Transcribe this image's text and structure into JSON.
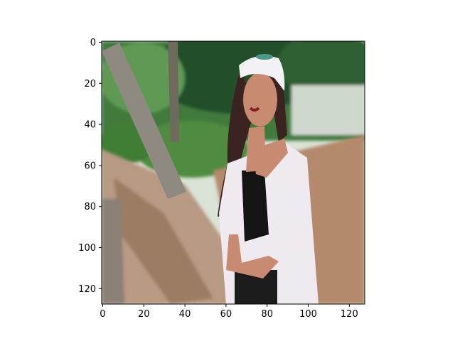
{
  "chart_data": {
    "type": "heatmap",
    "title": "",
    "xlabel": "",
    "ylabel": "",
    "image_size": [
      128,
      128
    ],
    "xlim": [
      -0.5,
      127.5
    ],
    "ylim": [
      127.5,
      -0.5
    ],
    "xticks": [
      0,
      20,
      40,
      60,
      80,
      100,
      120
    ],
    "yticks": [
      0,
      20,
      40,
      60,
      80,
      100,
      120
    ],
    "xtick_labels": [
      "0",
      "20",
      "40",
      "60",
      "80",
      "100",
      "120"
    ],
    "ytick_labels": [
      "0",
      "20",
      "40",
      "60",
      "80",
      "100",
      "120"
    ],
    "grid": false,
    "legend": "none",
    "colors": {
      "frame": "#000000",
      "foliage": "#3f7a3c",
      "foliage_dark": "#24502a",
      "sky": "#d9e3d6",
      "tree_trunk": "#8f8a7f",
      "path": "#b89a82",
      "ground": "#b58a6c",
      "jacket": "#eeeaf0",
      "top": "#141414",
      "skin": "#c98a72",
      "hair": "#3a2320",
      "cap": "#f2f2f4"
    }
  }
}
